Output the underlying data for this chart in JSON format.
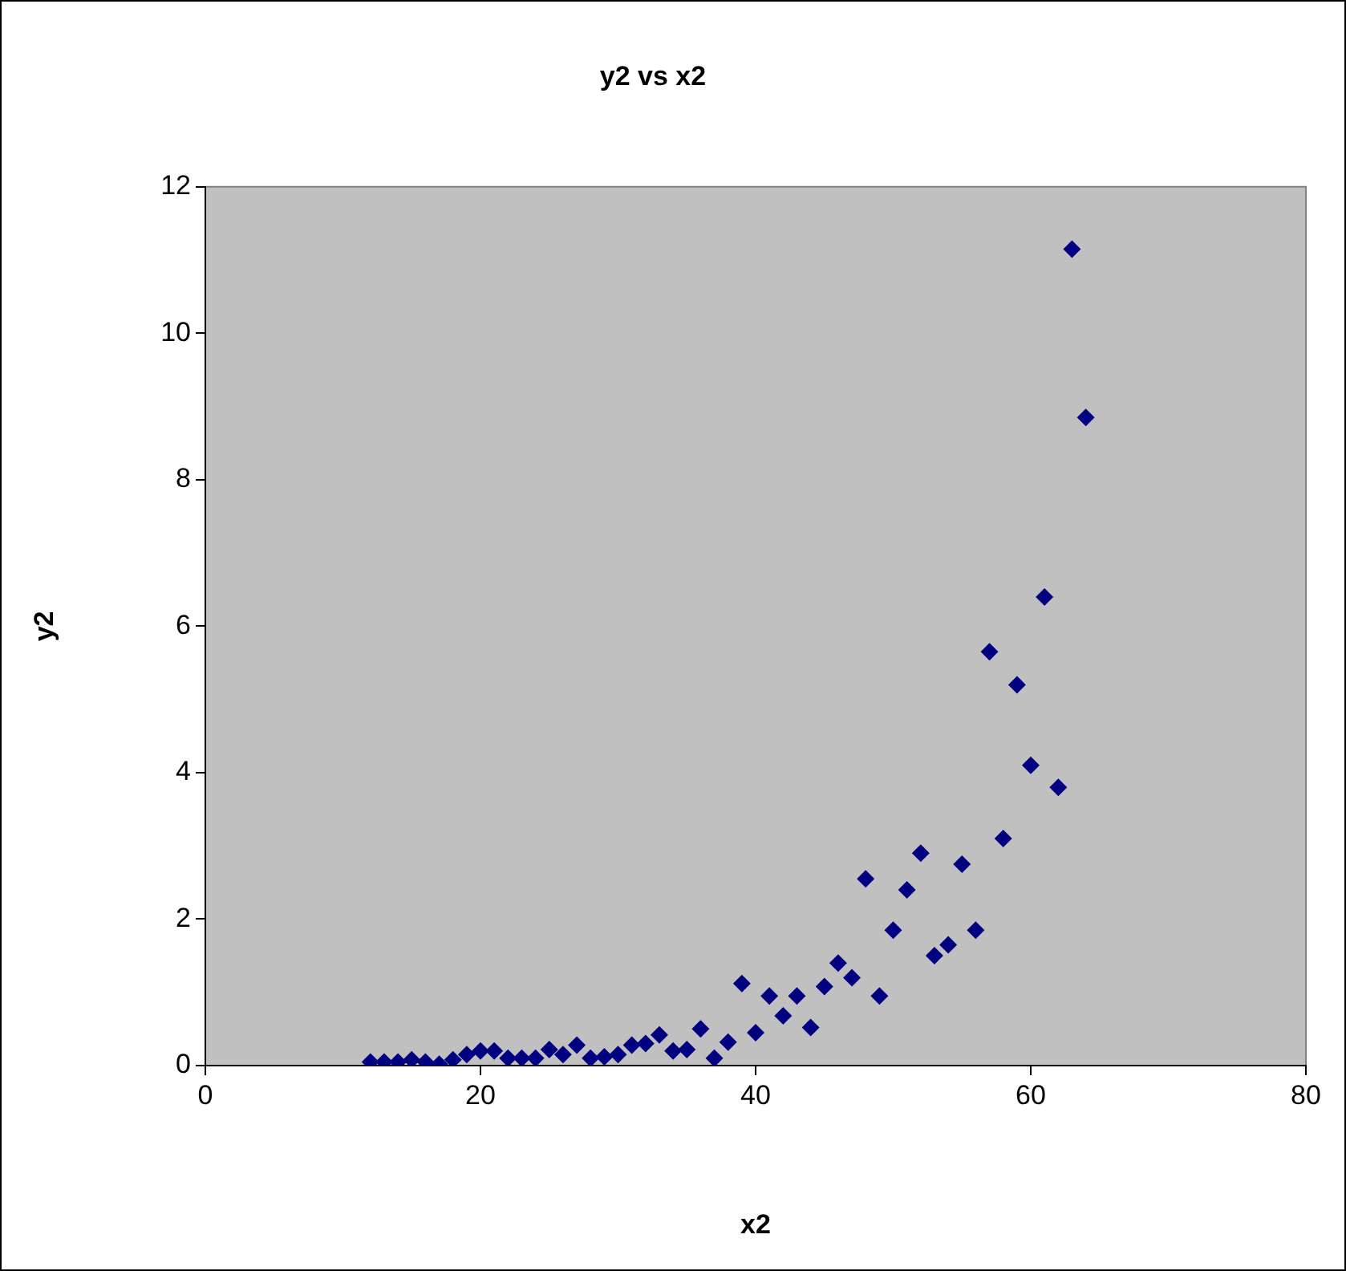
{
  "chart_data": {
    "type": "scatter",
    "title": "y2 vs x2",
    "xlabel": "x2",
    "ylabel": "y2",
    "x": [
      12,
      13,
      14,
      15,
      16,
      17,
      18,
      19,
      20,
      21,
      22,
      23,
      24,
      25,
      26,
      27,
      28,
      29,
      30,
      31,
      32,
      33,
      34,
      35,
      36,
      37,
      38,
      39,
      40,
      41,
      42,
      43,
      44,
      45,
      46,
      47,
      48,
      49,
      50,
      51,
      52,
      53,
      54,
      55,
      56,
      57,
      58,
      59,
      60,
      61,
      62,
      63,
      64
    ],
    "series": [
      {
        "color": "#000080",
        "values": [
          0.05,
          0.05,
          0.05,
          0.08,
          0.05,
          0.02,
          0.08,
          0.15,
          0.2,
          0.2,
          0.1,
          0.1,
          0.1,
          0.22,
          0.15,
          0.28,
          0.1,
          0.12,
          0.15,
          0.28,
          0.3,
          0.42,
          0.2,
          0.22,
          0.5,
          0.1,
          0.32,
          1.12,
          0.45,
          0.95,
          0.68,
          0.95,
          0.52,
          1.08,
          1.4,
          1.2,
          2.55,
          0.95,
          1.85,
          2.4,
          2.9,
          1.5,
          1.65,
          2.75,
          1.85,
          5.65,
          3.1,
          5.2,
          4.1,
          6.4,
          3.8,
          11.15,
          8.85
        ]
      }
    ],
    "xlim": [
      0,
      80
    ],
    "xticks": [
      0,
      20,
      40,
      60,
      80
    ],
    "ylim": [
      0,
      12
    ],
    "yticks": [
      0,
      2,
      4,
      6,
      8,
      10,
      12
    ],
    "grid": false,
    "legend": false,
    "marker": "diamond"
  }
}
